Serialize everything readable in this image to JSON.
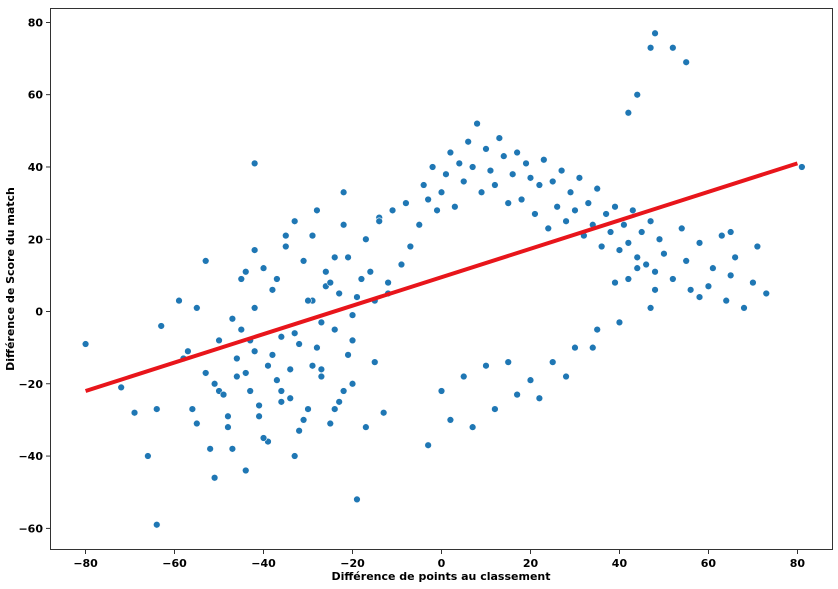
{
  "chart_data": {
    "type": "scatter",
    "title": "",
    "xlabel": "Différence de points au classement",
    "ylabel": "Différence de Score du match",
    "xlim": [
      -88,
      88
    ],
    "ylim": [
      -66,
      84
    ],
    "xticks": [
      -80,
      -60,
      -40,
      -20,
      0,
      20,
      40,
      60,
      80
    ],
    "yticks": [
      -60,
      -40,
      -20,
      0,
      20,
      40,
      60,
      80
    ],
    "xtick_labels": [
      "−80",
      "−60",
      "−40",
      "−20",
      "0",
      "20",
      "40",
      "60",
      "80"
    ],
    "ytick_labels": [
      "−60",
      "−40",
      "−20",
      "0",
      "20",
      "40",
      "60",
      "80"
    ],
    "grid": false,
    "colors": {
      "points": "#1f77b4",
      "point_edge": "#ffffff",
      "regression": "#e8151b"
    },
    "regression_line": {
      "x": [
        -80,
        80
      ],
      "y": [
        -22,
        41
      ]
    },
    "series": [
      {
        "type": "scatter",
        "x": [
          -80,
          -72,
          -69,
          -66,
          -64,
          -63,
          -59,
          -57,
          -56,
          -55,
          -53,
          -52,
          -51,
          -51,
          -50,
          -49,
          -48,
          -47,
          -46,
          -45,
          -44,
          -44,
          -43,
          -42,
          -42,
          -41,
          -40,
          -39,
          -38,
          -37,
          -36,
          -35,
          -34,
          -33,
          -33,
          -32,
          -31,
          -30,
          -29,
          -28,
          -27,
          -26,
          -25,
          -24,
          -23,
          -22,
          -21,
          -20,
          -19,
          -47,
          -45,
          -42,
          -40,
          -38,
          -36,
          -35,
          -33,
          -31,
          -29,
          -28,
          -27,
          -25,
          -24,
          -22,
          -22,
          -20,
          -19,
          -17,
          -16,
          -15,
          -14,
          -13,
          -12,
          -58,
          -55,
          -53,
          -50,
          -48,
          -46,
          -44,
          -43,
          -41,
          -39,
          -37,
          -36,
          -34,
          -32,
          -30,
          -29,
          -27,
          -26,
          -24,
          -23,
          -21,
          -20,
          -18,
          -17,
          -15,
          -14,
          -12,
          -11,
          -9,
          -8,
          -7,
          -5,
          -4,
          -3,
          -2,
          -1,
          0,
          1,
          2,
          3,
          4,
          5,
          6,
          7,
          8,
          9,
          10,
          11,
          12,
          13,
          14,
          15,
          16,
          17,
          18,
          19,
          20,
          21,
          22,
          23,
          24,
          25,
          26,
          27,
          28,
          29,
          30,
          31,
          32,
          33,
          34,
          35,
          36,
          37,
          38,
          39,
          40,
          41,
          42,
          43,
          44,
          45,
          46,
          47,
          48,
          49,
          50,
          52,
          54,
          55,
          56,
          58,
          60,
          61,
          63,
          64,
          65,
          66,
          68,
          70,
          71,
          73,
          81,
          0,
          5,
          10,
          15,
          22,
          28,
          34,
          40,
          42,
          47,
          58,
          65,
          -3,
          2,
          7,
          12,
          17,
          20,
          25,
          30,
          35,
          39,
          44,
          48,
          -42,
          -19,
          -64,
          48,
          52,
          55,
          47,
          44,
          42
        ],
        "y": [
          -9,
          -21,
          -28,
          -40,
          -27,
          -4,
          3,
          -11,
          -27,
          1,
          14,
          -38,
          -20,
          -46,
          -22,
          -23,
          -32,
          -2,
          -18,
          -5,
          -44,
          11,
          -8,
          1,
          17,
          -29,
          12,
          -36,
          -12,
          9,
          -22,
          21,
          -16,
          -40,
          25,
          -33,
          14,
          -27,
          3,
          28,
          -18,
          7,
          -31,
          15,
          -25,
          33,
          -12,
          -20,
          -52,
          -38,
          9,
          -11,
          -35,
          6,
          -25,
          18,
          -6,
          -30,
          21,
          -10,
          -16,
          8,
          -27,
          24,
          -22,
          -8,
          4,
          -32,
          11,
          -14,
          26,
          -28,
          5,
          -13,
          -31,
          -17,
          -8,
          -29,
          -13,
          -17,
          -22,
          -26,
          -15,
          -19,
          -7,
          -24,
          -9,
          3,
          -15,
          -3,
          11,
          -5,
          5,
          15,
          -1,
          9,
          20,
          3,
          25,
          8,
          28,
          13,
          30,
          18,
          24,
          35,
          31,
          40,
          28,
          33,
          38,
          44,
          29,
          41,
          36,
          47,
          40,
          52,
          33,
          45,
          39,
          35,
          48,
          43,
          30,
          38,
          44,
          31,
          41,
          37,
          27,
          35,
          42,
          23,
          36,
          29,
          39,
          25,
          33,
          28,
          37,
          21,
          30,
          24,
          34,
          18,
          27,
          22,
          29,
          17,
          24,
          19,
          28,
          15,
          22,
          13,
          25,
          11,
          20,
          16,
          9,
          23,
          14,
          6,
          19,
          7,
          12,
          21,
          3,
          10,
          15,
          1,
          8,
          18,
          5,
          40,
          -22,
          -18,
          -15,
          -14,
          -24,
          -18,
          -10,
          -3,
          9,
          1,
          4,
          22,
          -37,
          -30,
          -32,
          -27,
          -23,
          -19,
          -14,
          -10,
          -5,
          8,
          12,
          6,
          41,
          -52,
          -59,
          77,
          73,
          69,
          73,
          60,
          55
        ]
      }
    ]
  }
}
